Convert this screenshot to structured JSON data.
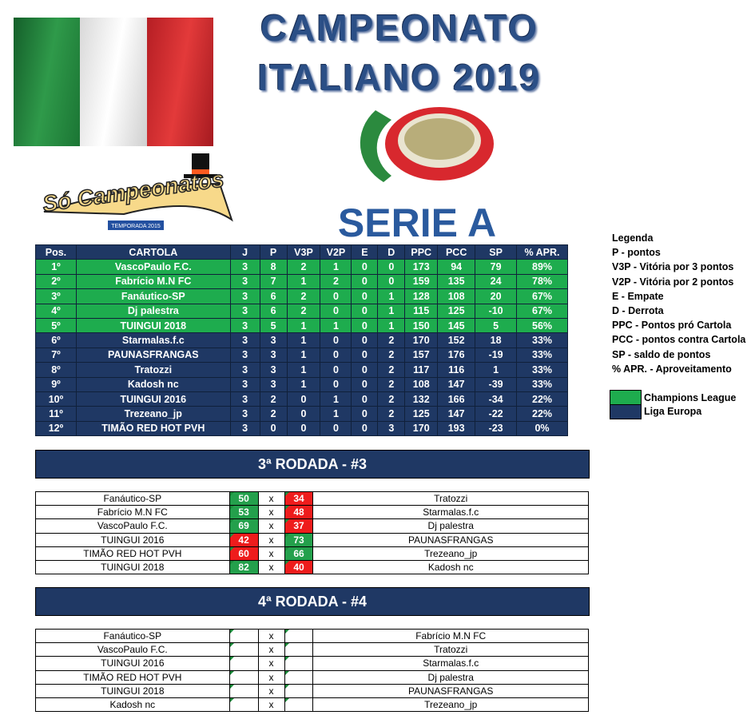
{
  "title": {
    "line1": "CAMPEONATO",
    "line2": "ITALIANO 2019"
  },
  "logos": {
    "flag_colors": [
      "#1e8a3c",
      "#f4f4f4",
      "#d22b2b"
    ],
    "so_campeonatos": "Só Campeonatos",
    "so_campeonatos_sub": "TEMPORADA 2015",
    "serie_a": "SERIE A"
  },
  "standings": {
    "headers": [
      "Pos.",
      "CARTOLA",
      "J",
      "P",
      "V3P",
      "V2P",
      "E",
      "D",
      "PPC",
      "PCC",
      "SP",
      "% APR."
    ],
    "rows": [
      [
        "1º",
        "VascoPaulo F.C.",
        "3",
        "8",
        "2",
        "1",
        "0",
        "0",
        "173",
        "94",
        "79",
        "89%",
        "cl"
      ],
      [
        "2º",
        "Fabrício M.N FC",
        "3",
        "7",
        "1",
        "2",
        "0",
        "0",
        "159",
        "135",
        "24",
        "78%",
        "cl"
      ],
      [
        "3º",
        "Fanáutico-SP",
        "3",
        "6",
        "2",
        "0",
        "0",
        "1",
        "128",
        "108",
        "20",
        "67%",
        "cl"
      ],
      [
        "4º",
        "Dj palestra",
        "3",
        "6",
        "2",
        "0",
        "0",
        "1",
        "115",
        "125",
        "-10",
        "67%",
        "cl"
      ],
      [
        "5º",
        "TUINGUI 2018",
        "3",
        "5",
        "1",
        "1",
        "0",
        "1",
        "150",
        "145",
        "5",
        "56%",
        "cl"
      ],
      [
        "6º",
        "Starmalas.f.c",
        "3",
        "3",
        "1",
        "0",
        "0",
        "2",
        "170",
        "152",
        "18",
        "33%",
        "le"
      ],
      [
        "7º",
        "PAUNASFRANGAS",
        "3",
        "3",
        "1",
        "0",
        "0",
        "2",
        "157",
        "176",
        "-19",
        "33%",
        "le"
      ],
      [
        "8º",
        "Tratozzi",
        "3",
        "3",
        "1",
        "0",
        "0",
        "2",
        "117",
        "116",
        "1",
        "33%",
        "le"
      ],
      [
        "9º",
        "Kadosh nc",
        "3",
        "3",
        "1",
        "0",
        "0",
        "2",
        "108",
        "147",
        "-39",
        "33%",
        "le"
      ],
      [
        "10º",
        "TUINGUI 2016",
        "3",
        "2",
        "0",
        "1",
        "0",
        "2",
        "132",
        "166",
        "-34",
        "22%",
        "le"
      ],
      [
        "11º",
        "Trezeano_jp",
        "3",
        "2",
        "0",
        "1",
        "0",
        "2",
        "125",
        "147",
        "-22",
        "22%",
        "le"
      ],
      [
        "12º",
        "TIMÃO RED HOT PVH",
        "3",
        "0",
        "0",
        "0",
        "0",
        "3",
        "170",
        "193",
        "-23",
        "0%",
        "le"
      ]
    ]
  },
  "legend": {
    "title": "Legenda",
    "items": [
      "P - pontos",
      "V3P - Vitória por 3 pontos",
      "V2P - Vitória por 2 pontos",
      "E - Empate",
      "D - Derrota",
      "PPC - Pontos pró Cartola",
      "PCC - pontos contra Cartola",
      "SP - saldo de pontos",
      "% APR. - Aproveitamento"
    ],
    "zones": [
      {
        "label": "Champions League",
        "color": "#1eac4e"
      },
      {
        "label": "Liga Europa",
        "color": "#1f3864"
      }
    ]
  },
  "rounds": [
    {
      "title": "3ª RODADA - #3",
      "matches": [
        [
          "Fanáutico-SP",
          "50",
          "x",
          "34",
          "Tratozzi"
        ],
        [
          "Fabrício M.N FC",
          "53",
          "x",
          "48",
          "Starmalas.f.c"
        ],
        [
          "VascoPaulo F.C.",
          "69",
          "x",
          "37",
          "Dj palestra"
        ],
        [
          "TUINGUI 2016",
          "42",
          "x",
          "73",
          "PAUNASFRANGAS"
        ],
        [
          "TIMÃO RED HOT PVH",
          "60",
          "x",
          "66",
          "Trezeano_jp"
        ],
        [
          "TUINGUI 2018",
          "82",
          "x",
          "40",
          "Kadosh nc"
        ]
      ]
    },
    {
      "title": "4ª RODADA - #4",
      "matches": [
        [
          "Fanáutico-SP",
          "",
          "x",
          "",
          "Fabrício M.N FC"
        ],
        [
          "VascoPaulo F.C.",
          "",
          "x",
          "",
          "Tratozzi"
        ],
        [
          "TUINGUI 2016",
          "",
          "x",
          "",
          "Starmalas.f.c"
        ],
        [
          "TIMÃO RED HOT PVH",
          "",
          "x",
          "",
          "Dj palestra"
        ],
        [
          "TUINGUI 2018",
          "",
          "x",
          "",
          "PAUNASFRANGAS"
        ],
        [
          "Kadosh nc",
          "",
          "x",
          "",
          "Trezeano_jp"
        ]
      ]
    }
  ]
}
